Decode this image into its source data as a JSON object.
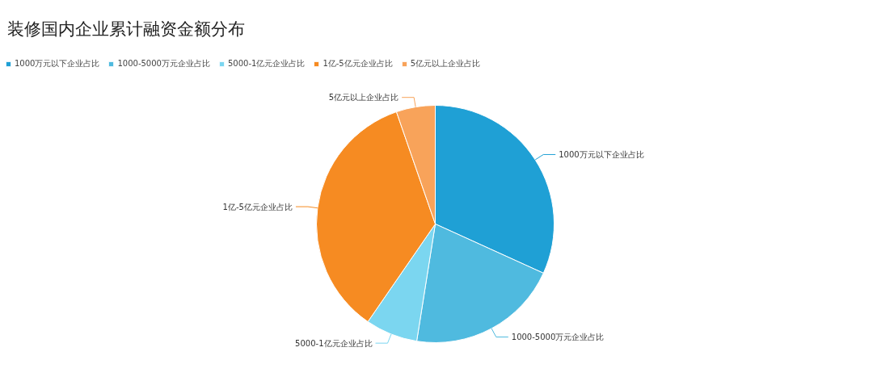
{
  "chart_data": {
    "type": "pie",
    "title": "装修国内企业累计融资金额分布",
    "categories": [
      "1000万元以下企业占比",
      "1000-5000万元企业占比",
      "5000-1亿元企业占比",
      "1亿-5亿元企业占比",
      "5亿元以上企业占比"
    ],
    "values": [
      31.8,
      20.7,
      7.1,
      35.1,
      5.3
    ],
    "colors": [
      "#1fa0d5",
      "#4fbadf",
      "#7bd6f0",
      "#f68b22",
      "#f8a35a"
    ],
    "legend": "top left"
  }
}
